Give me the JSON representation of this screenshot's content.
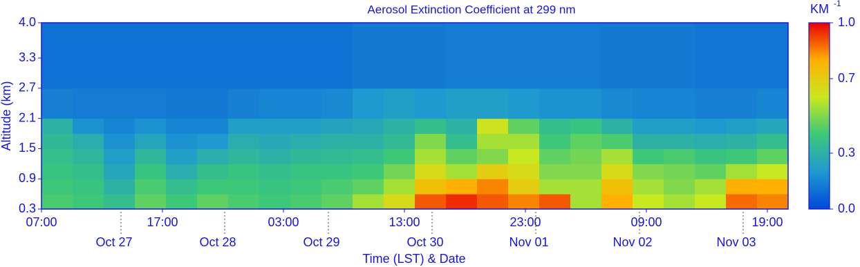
{
  "chart_data": {
    "type": "heatmap",
    "title": "Aerosol Extinction Coefficient at 299 nm",
    "xlabel": "Time (LST) & Date",
    "ylabel": "Altitude (km)",
    "colorbar_label": "KM",
    "colorbar_label_sup": "-1",
    "xlim": [
      0,
      172.8
    ],
    "ylim": [
      0.3,
      4.0
    ],
    "xticks": [
      {
        "value": 0,
        "label": "07:00"
      },
      {
        "value": 28,
        "label": "17:00"
      },
      {
        "value": 56,
        "label": "03:00"
      },
      {
        "value": 84,
        "label": "13:00"
      },
      {
        "value": 112,
        "label": "23:00"
      },
      {
        "value": 140,
        "label": "09:00"
      },
      {
        "value": 168,
        "label": "19:00"
      }
    ],
    "date_ticks": [
      {
        "value": 18.4,
        "label": "Oct 27"
      },
      {
        "value": 42.4,
        "label": "Oct 28"
      },
      {
        "value": 66.4,
        "label": "Oct 29"
      },
      {
        "value": 90.4,
        "label": "Oct 30"
      },
      {
        "value": 114.4,
        "label": "Nov 01"
      },
      {
        "value": 138.4,
        "label": "Nov 02"
      },
      {
        "value": 162.4,
        "label": "Nov 03"
      }
    ],
    "yticks": [
      0.3,
      0.9,
      1.5,
      2.1,
      2.7,
      3.3,
      {
        "value": 4,
        "label": "4.0"
      }
    ],
    "clim": [
      0,
      1
    ],
    "cticks": [
      {
        "value": 0,
        "label": "0.0"
      },
      0.3,
      0.7,
      {
        "value": 1,
        "label": "1.0"
      }
    ],
    "colormap": [
      "#0048d8",
      "#1f9ad0",
      "#3cc878",
      "#c8e820",
      "#ffb000",
      "#e80000"
    ],
    "x_edges": [
      0,
      7.2,
      14.4,
      21.6,
      28.8,
      36,
      43.2,
      50.4,
      57.6,
      64.8,
      72,
      79.2,
      86.4,
      93.6,
      100.8,
      108,
      115.2,
      122.4,
      129.6,
      136.8,
      144,
      151.2,
      158.4,
      165.6,
      172.8
    ],
    "y_edges": [
      0.3,
      0.6,
      0.9,
      1.2,
      1.5,
      1.8,
      2.1,
      2.7,
      4.0
    ],
    "z": [
      [
        0.42,
        0.4,
        0.35,
        0.45,
        0.4,
        0.45,
        0.42,
        0.4,
        0.42,
        0.45,
        0.55,
        0.65,
        0.9,
        0.95,
        0.9,
        0.85,
        0.9,
        0.55,
        0.8,
        0.6,
        0.55,
        0.6,
        0.88,
        0.85
      ],
      [
        0.4,
        0.38,
        0.3,
        0.42,
        0.35,
        0.4,
        0.4,
        0.38,
        0.4,
        0.42,
        0.45,
        0.55,
        0.75,
        0.8,
        0.85,
        0.7,
        0.55,
        0.55,
        0.75,
        0.55,
        0.5,
        0.55,
        0.8,
        0.8
      ],
      [
        0.38,
        0.35,
        0.25,
        0.38,
        0.28,
        0.35,
        0.38,
        0.35,
        0.38,
        0.38,
        0.4,
        0.48,
        0.65,
        0.55,
        0.7,
        0.65,
        0.5,
        0.5,
        0.65,
        0.5,
        0.48,
        0.45,
        0.55,
        0.6
      ],
      [
        0.36,
        0.32,
        0.22,
        0.32,
        0.22,
        0.28,
        0.32,
        0.3,
        0.33,
        0.34,
        0.35,
        0.4,
        0.55,
        0.45,
        0.5,
        0.6,
        0.45,
        0.48,
        0.55,
        0.4,
        0.42,
        0.38,
        0.4,
        0.45
      ],
      [
        0.33,
        0.28,
        0.18,
        0.25,
        0.18,
        0.2,
        0.28,
        0.26,
        0.28,
        0.3,
        0.3,
        0.34,
        0.5,
        0.35,
        0.55,
        0.55,
        0.4,
        0.45,
        0.42,
        0.3,
        0.3,
        0.28,
        0.3,
        0.35
      ],
      [
        0.3,
        0.18,
        0.15,
        0.18,
        0.15,
        0.15,
        0.22,
        0.22,
        0.22,
        0.24,
        0.26,
        0.3,
        0.35,
        0.3,
        0.62,
        0.45,
        0.35,
        0.38,
        0.3,
        0.22,
        0.22,
        0.2,
        0.22,
        0.25
      ],
      [
        0.14,
        0.13,
        0.13,
        0.13,
        0.12,
        0.12,
        0.14,
        0.15,
        0.15,
        0.16,
        0.2,
        0.22,
        0.2,
        0.22,
        0.22,
        0.2,
        0.18,
        0.18,
        0.16,
        0.15,
        0.15,
        0.14,
        0.14,
        0.15
      ],
      [
        0.1,
        0.1,
        0.1,
        0.1,
        0.1,
        0.1,
        0.1,
        0.1,
        0.1,
        0.1,
        0.12,
        0.12,
        0.12,
        0.13,
        0.13,
        0.13,
        0.13,
        0.13,
        0.12,
        0.12,
        0.12,
        0.11,
        0.11,
        0.11
      ]
    ]
  }
}
